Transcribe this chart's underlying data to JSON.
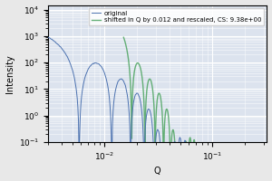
{
  "title": "",
  "xlabel": "Q",
  "ylabel": "Intensity",
  "legend_original": "original",
  "legend_shifted": "shifted in Q by 0.012 and rescaled, CS: 9.38e+00",
  "q_min": 0.003,
  "q_max": 0.32,
  "ylim_min": 0.1,
  "ylim_max": 15000,
  "color_original": "#4c72b0",
  "color_shifted": "#55a868",
  "background_color": "#dce3ee",
  "grid_color": "white",
  "q_shift": 0.012,
  "scale_factor": 9.38,
  "fig_bg": "#e8e8e8"
}
